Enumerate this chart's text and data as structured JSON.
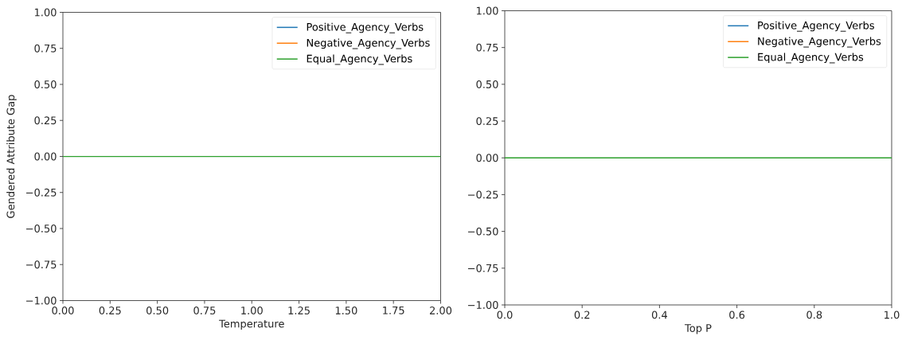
{
  "chart_data": [
    {
      "type": "line",
      "xlabel": "Temperature",
      "ylabel": "Gendered Attribute Gap",
      "x": [
        0,
        2
      ],
      "series": [
        {
          "name": "Positive_Agency_Verbs",
          "color": "#1f77b4",
          "values": [
            null,
            null
          ]
        },
        {
          "name": "Negative_Agency_Verbs",
          "color": "#ff7f0e",
          "values": [
            null,
            null
          ]
        },
        {
          "name": "Equal_Agency_Verbs",
          "color": "#2ca02c",
          "values": [
            0,
            0
          ]
        }
      ],
      "xlim": [
        0,
        2
      ],
      "ylim": [
        -1,
        1
      ],
      "xticks": [
        {
          "value": 0,
          "label": "0.00"
        },
        0.25,
        {
          "value": 0.5,
          "label": "0.50"
        },
        0.75,
        {
          "value": 1,
          "label": "1.00"
        },
        1.25,
        {
          "value": 1.5,
          "label": "1.50"
        },
        1.75,
        {
          "value": 2,
          "label": "2.00"
        }
      ],
      "yticks": [
        {
          "value": -1,
          "label": "−1.00"
        },
        {
          "value": -0.75,
          "label": "−0.75"
        },
        {
          "value": -0.5,
          "label": "−0.50"
        },
        {
          "value": -0.25,
          "label": "−0.25"
        },
        {
          "value": 0,
          "label": "0.00"
        },
        {
          "value": 0.25,
          "label": "0.25"
        },
        {
          "value": 0.5,
          "label": "0.50"
        },
        {
          "value": 0.75,
          "label": "0.75"
        },
        {
          "value": 1,
          "label": "1.00"
        }
      ],
      "legend": "top right"
    },
    {
      "type": "line",
      "xlabel": "Top P",
      "x": [
        0,
        1
      ],
      "series": [
        {
          "name": "Positive_Agency_Verbs",
          "color": "#1f77b4",
          "values": [
            null,
            null
          ]
        },
        {
          "name": "Negative_Agency_Verbs",
          "color": "#ff7f0e",
          "values": [
            null,
            null
          ]
        },
        {
          "name": "Equal_Agency_Verbs",
          "color": "#2ca02c",
          "values": [
            0,
            0
          ]
        }
      ],
      "xlim": [
        0,
        1
      ],
      "ylim": [
        -1,
        1
      ],
      "xticks": [
        {
          "value": 0,
          "label": "0.0"
        },
        0.2,
        0.4,
        0.6,
        0.8,
        {
          "value": 1,
          "label": "1.0"
        }
      ],
      "yticks": [
        {
          "value": -1,
          "label": "−1.00"
        },
        {
          "value": -0.75,
          "label": "−0.75"
        },
        {
          "value": -0.5,
          "label": "−0.50"
        },
        {
          "value": -0.25,
          "label": "−0.25"
        },
        {
          "value": 0,
          "label": "0.00"
        },
        {
          "value": 0.25,
          "label": "0.25"
        },
        {
          "value": 0.5,
          "label": "0.50"
        },
        {
          "value": 0.75,
          "label": "0.75"
        },
        {
          "value": 1,
          "label": "1.00"
        }
      ],
      "legend": "top right"
    }
  ]
}
